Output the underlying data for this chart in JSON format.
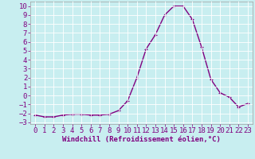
{
  "x": [
    0,
    1,
    2,
    3,
    4,
    5,
    6,
    7,
    8,
    9,
    10,
    11,
    12,
    13,
    14,
    15,
    16,
    17,
    18,
    19,
    20,
    21,
    22,
    23
  ],
  "y": [
    -2.2,
    -2.4,
    -2.4,
    -2.2,
    -2.1,
    -2.1,
    -2.2,
    -2.2,
    -2.1,
    -1.7,
    -0.6,
    2.0,
    5.2,
    6.8,
    9.0,
    10.0,
    10.0,
    8.5,
    5.4,
    1.8,
    0.3,
    -0.2,
    -1.3,
    -0.9
  ],
  "line_color": "#800080",
  "marker": "+",
  "xlabel": "Windchill (Refroidissement éolien,°C)",
  "xlim": [
    -0.5,
    23.5
  ],
  "ylim": [
    -3.2,
    10.5
  ],
  "yticks": [
    -3,
    -2,
    -1,
    0,
    1,
    2,
    3,
    4,
    5,
    6,
    7,
    8,
    9,
    10
  ],
  "xticks": [
    0,
    1,
    2,
    3,
    4,
    5,
    6,
    7,
    8,
    9,
    10,
    11,
    12,
    13,
    14,
    15,
    16,
    17,
    18,
    19,
    20,
    21,
    22,
    23
  ],
  "bg_color": "#c8eef0",
  "grid_color": "#ffffff",
  "label_color": "#800080",
  "tick_color": "#800080",
  "font_size": 6.5,
  "xlabel_fontsize": 6.5,
  "linewidth": 1.0,
  "marker_size": 3
}
